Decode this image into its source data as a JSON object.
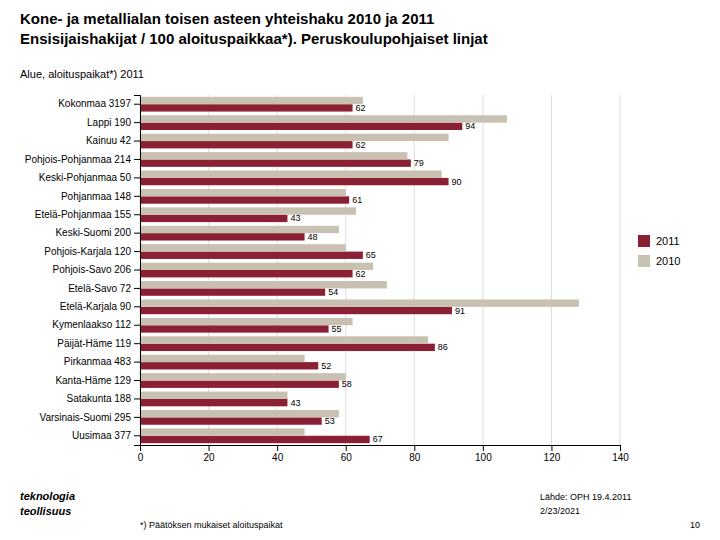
{
  "chart_data": {
    "type": "bar",
    "orientation": "horizontal",
    "title": "Kone- ja metallialan toisen asteen yhteishaku 2010 ja 2011",
    "subtitle": "Ensisijaishakijat / 100 aloituspaikkaa*). Peruskoulupohjaiset linjat",
    "annotations": [
      "Alue, aloituspaikat*) 2011",
      "teknologia",
      "teollisuus",
      "*) Päätöksen mukaiset aloituspaikat",
      "Lähde: OPH 19.4.2011",
      "2/23/2021",
      "10"
    ],
    "categories": [
      "Kokonmaa 3197",
      "Lappi 190",
      "Kainuu 42",
      "Pohjois-Pohjanmaa 214",
      "Keski-Pohjanmaa 50",
      "Pohjanmaa 148",
      "Etelä-Pohjanmaa 155",
      "Keski-Suomi 200",
      "Pohjois-Karjala 120",
      "Pohjois-Savo 206",
      "Etelä-Savo 72",
      "Etelä-Karjala 90",
      "Kymenlaakso 112",
      "Päijät-Häme 119",
      "Pirkanmaa 483",
      "Kanta-Häme 129",
      "Satakunta 188",
      "Varsinais-Suomi 295",
      "Uusimaa 377"
    ],
    "series": [
      {
        "name": "2011",
        "color": "#8B2035",
        "data_labels": true,
        "values": [
          62,
          94,
          62,
          79,
          90,
          61,
          43,
          48,
          65,
          62,
          54,
          91,
          55,
          86,
          52,
          58,
          43,
          53,
          67
        ]
      },
      {
        "name": "2010",
        "color": "#C8C0B0",
        "data_labels": false,
        "values": [
          65,
          107,
          90,
          78,
          88,
          60,
          63,
          58,
          60,
          68,
          72,
          128,
          62,
          84,
          48,
          60,
          43,
          58,
          48
        ]
      }
    ],
    "xlim": [
      0,
      140
    ],
    "xticks": [
      0,
      20,
      40,
      60,
      80,
      100,
      120,
      140
    ],
    "grid": true,
    "legend": "right"
  }
}
